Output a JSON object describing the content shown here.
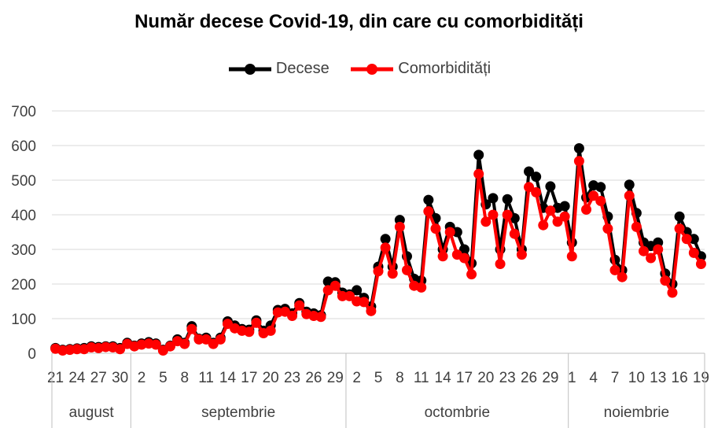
{
  "chart_data": {
    "type": "line",
    "title": "Număr decese Covid-19, din care cu comorbidități",
    "xlabel": "",
    "ylabel": "",
    "ylim": [
      0,
      700
    ],
    "yticks": [
      0,
      100,
      200,
      300,
      400,
      500,
      600,
      700
    ],
    "grid": "horizontal",
    "legend_position": "top",
    "x_start": "21 august",
    "x_end": "19 noiembrie",
    "x_tick_labels": [
      "21",
      "24",
      "27",
      "30",
      "2",
      "5",
      "8",
      "11",
      "14",
      "17",
      "20",
      "23",
      "26",
      "29",
      "2",
      "5",
      "8",
      "11",
      "14",
      "17",
      "20",
      "23",
      "26",
      "29",
      "1",
      "4",
      "7",
      "10",
      "13",
      "16",
      "19"
    ],
    "months": [
      {
        "name": "august",
        "days": 11
      },
      {
        "name": "septembrie",
        "days": 30
      },
      {
        "name": "octombrie",
        "days": 31
      },
      {
        "name": "noiembrie",
        "days": 19
      }
    ],
    "series": [
      {
        "name": "Decese",
        "color": "#000000",
        "values": [
          15,
          10,
          12,
          14,
          15,
          20,
          18,
          20,
          20,
          15,
          30,
          22,
          28,
          32,
          28,
          10,
          22,
          40,
          30,
          78,
          42,
          45,
          30,
          45,
          92,
          80,
          70,
          68,
          95,
          65,
          80,
          125,
          128,
          115,
          145,
          120,
          115,
          110,
          207,
          205,
          175,
          170,
          182,
          160,
          135,
          250,
          330,
          250,
          385,
          280,
          215,
          210,
          443,
          390,
          300,
          365,
          350,
          300,
          260,
          573,
          430,
          448,
          300,
          445,
          390,
          300,
          525,
          510,
          420,
          482,
          420,
          425,
          320,
          592,
          450,
          485,
          480,
          395,
          270,
          240,
          487,
          405,
          320,
          310,
          320,
          230,
          200,
          395,
          350,
          330,
          280
        ]
      },
      {
        "name": "Comorbidități",
        "color": "#ff0000",
        "values": [
          13,
          8,
          10,
          12,
          12,
          17,
          15,
          18,
          17,
          12,
          27,
          20,
          25,
          28,
          25,
          8,
          20,
          35,
          27,
          70,
          40,
          40,
          27,
          40,
          85,
          72,
          65,
          62,
          88,
          58,
          65,
          118,
          120,
          108,
          138,
          113,
          108,
          105,
          182,
          195,
          165,
          165,
          150,
          148,
          122,
          237,
          305,
          230,
          365,
          240,
          195,
          190,
          410,
          360,
          280,
          350,
          285,
          275,
          228,
          518,
          380,
          400,
          258,
          400,
          345,
          285,
          480,
          465,
          370,
          412,
          380,
          395,
          280,
          555,
          415,
          455,
          440,
          360,
          240,
          220,
          455,
          365,
          295,
          275,
          300,
          210,
          175,
          360,
          330,
          290,
          258
        ]
      }
    ]
  }
}
